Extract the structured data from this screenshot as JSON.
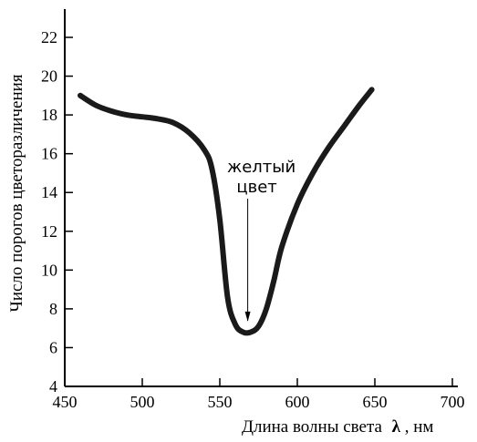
{
  "chart_data": {
    "type": "line",
    "xlabel_main": "Длина волны света",
    "xlabel_symbol": "λ",
    "xlabel_unit": ", нм",
    "ylabel": "Число порогов цветоразличения",
    "xlim": [
      450,
      700
    ],
    "ylim": [
      4,
      23
    ],
    "x_ticks": [
      450,
      500,
      550,
      600,
      650,
      700
    ],
    "y_ticks": [
      4,
      6,
      8,
      10,
      12,
      14,
      16,
      18,
      20,
      22
    ],
    "grid": false,
    "series": [
      {
        "x": [
          460,
          470,
          480,
          490,
          500,
          510,
          520,
          530,
          540,
          545,
          550,
          555,
          560,
          565,
          570,
          575,
          580,
          585,
          590,
          600,
          610,
          620,
          630,
          640,
          648
        ],
        "y": [
          19.0,
          18.5,
          18.2,
          18.0,
          17.9,
          17.8,
          17.6,
          17.1,
          16.2,
          15.2,
          12.6,
          8.6,
          7.2,
          6.8,
          6.8,
          7.1,
          8.0,
          9.5,
          11.2,
          13.4,
          15.0,
          16.3,
          17.4,
          18.5,
          19.3
        ],
        "color": "#1a1a1a"
      }
    ],
    "annotations": [
      {
        "text_line1": "желтый",
        "text_line2": "цвет",
        "x": 568,
        "y": 7.2
      }
    ]
  }
}
